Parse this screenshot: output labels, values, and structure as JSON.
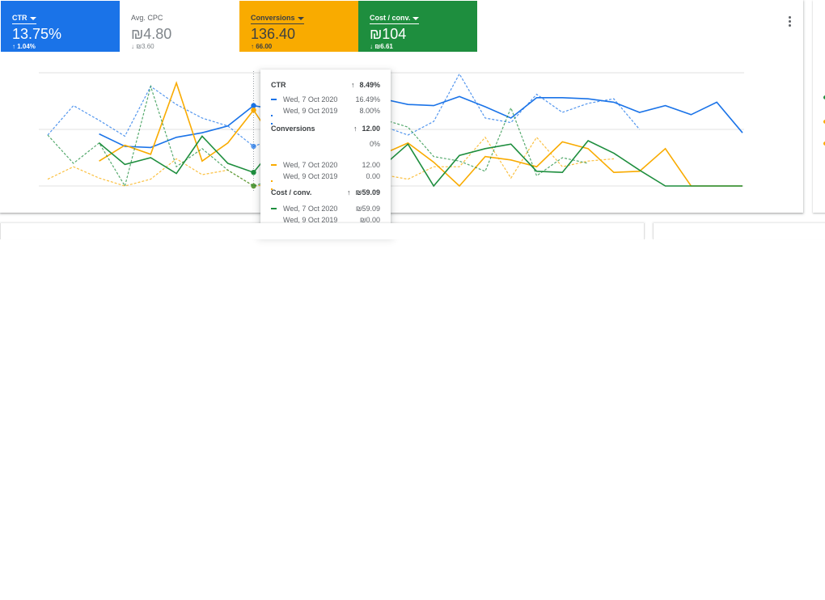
{
  "tiles": [
    {
      "name": "CTR",
      "value": "13.75%",
      "change_arrow": "↑",
      "change": "1.04%",
      "color": "#1a73e8",
      "selected": true
    },
    {
      "name": "Avg. CPC",
      "value": "₪4.80",
      "change_arrow": "↓",
      "change": "₪3.60",
      "color": "#ffffff",
      "selected": false
    },
    {
      "name": "Conversions",
      "value": "136.40",
      "change_arrow": "↑",
      "change": "66.00",
      "color": "#f9ab00",
      "selected": true
    },
    {
      "name": "Cost / conv.",
      "value": "₪104",
      "change_arrow": "↓",
      "change": "₪6.61",
      "color": "#1e8e3e",
      "selected": true
    }
  ],
  "tooltip": {
    "sections": [
      {
        "metric": "CTR",
        "arrow": "↑",
        "delta": "8.49%",
        "color": "#1a73e8",
        "rows": [
          {
            "date": "Wed, 7 Oct 2020",
            "value": "16.49%"
          },
          {
            "date": "Wed, 9 Oct 2019",
            "value": "8.00%"
          }
        ]
      },
      {
        "metric": "Conversions",
        "arrow": "↑",
        "delta": "12.00",
        "extra": "0%",
        "color": "#f9ab00",
        "rows": [
          {
            "date": "Wed, 7 Oct 2020",
            "value": "12.00"
          },
          {
            "date": "Wed, 9 Oct 2019",
            "value": "0.00"
          }
        ]
      },
      {
        "metric": "Cost / conv.",
        "arrow": "↑",
        "delta": "₪59.09",
        "color": "#1e8e3e",
        "rows": [
          {
            "date": "Wed, 7 Oct 2020",
            "value": "₪59.09"
          },
          {
            "date": "Wed, 9 Oct 2019",
            "value": "₪0.00"
          }
        ]
      }
    ]
  },
  "chart_data": {
    "type": "line",
    "grid": true,
    "legend": "none",
    "x": [
      0,
      1,
      2,
      3,
      4,
      5,
      6,
      7,
      8,
      9,
      10,
      11,
      12,
      13,
      14,
      15,
      16,
      17,
      18,
      19,
      20,
      21,
      22,
      23,
      24,
      25,
      26,
      27
    ],
    "highlight_index": 8,
    "series": [
      {
        "metric": "CTR",
        "period": "current",
        "color": "#1a73e8",
        "style": "solid",
        "values": [
          null,
          null,
          0.46,
          0.35,
          0.34,
          0.43,
          0.47,
          0.53,
          0.71,
          0.67,
          0.66,
          0.68,
          0.7,
          0.77,
          0.72,
          0.71,
          0.79,
          0.7,
          0.6,
          0.78,
          0.78,
          0.77,
          0.74,
          0.65,
          0.71,
          0.63,
          0.74,
          0.47
        ]
      },
      {
        "metric": "CTR",
        "period": "previous",
        "color": "#1a73e8",
        "style": "dashed",
        "values": [
          0.45,
          0.71,
          0.58,
          0.44,
          0.88,
          0.72,
          0.6,
          0.53,
          0.35,
          0.43,
          0.59,
          0.36,
          0.34,
          0.53,
          0.45,
          0.57,
          0.99,
          0.6,
          0.56,
          0.81,
          0.65,
          0.73,
          0.77,
          0.5,
          null,
          null,
          null,
          null
        ]
      },
      {
        "metric": "Conversions",
        "period": "current",
        "color": "#f9ab00",
        "style": "solid",
        "values": [
          null,
          null,
          0.22,
          0.36,
          0.28,
          0.91,
          0.22,
          0.38,
          0.67,
          0.33,
          0.45,
          0.62,
          0.25,
          0.28,
          0.38,
          0.21,
          0.0,
          0.26,
          0.23,
          0.17,
          0.39,
          0.33,
          0.12,
          0.13,
          0.33,
          0.0,
          0.0,
          0.0
        ]
      },
      {
        "metric": "Conversions",
        "period": "previous",
        "color": "#f9ab00",
        "style": "dashed",
        "values": [
          0.06,
          0.17,
          0.07,
          0.0,
          0.06,
          0.24,
          0.1,
          0.14,
          0.0,
          0.02,
          0.24,
          0.18,
          0.13,
          0.1,
          0.06,
          0.17,
          0.17,
          0.43,
          0.07,
          0.43,
          0.17,
          0.22,
          0.24,
          null,
          null,
          null,
          null,
          null
        ]
      },
      {
        "metric": "Cost / conv.",
        "period": "current",
        "color": "#1e8e3e",
        "style": "solid",
        "values": [
          null,
          null,
          0.38,
          0.19,
          0.25,
          0.11,
          0.44,
          0.2,
          0.12,
          0.4,
          0.21,
          0.3,
          0.27,
          0.17,
          0.37,
          0.0,
          0.27,
          0.33,
          0.37,
          0.13,
          0.12,
          0.4,
          0.29,
          0.14,
          0.0,
          0.0,
          0.0,
          0.0
        ]
      },
      {
        "metric": "Cost / conv.",
        "period": "previous",
        "color": "#1e8e3e",
        "style": "dashed",
        "values": [
          0.45,
          0.2,
          0.38,
          0.0,
          0.88,
          0.17,
          0.33,
          0.14,
          0.0,
          0.07,
          0.26,
          0.29,
          0.29,
          0.59,
          0.52,
          0.26,
          0.22,
          0.13,
          0.69,
          0.09,
          0.25,
          0.2,
          null,
          null,
          null,
          null,
          null,
          null
        ]
      }
    ]
  },
  "right_card_dots": [
    "#1e8e3e",
    "#f9ab00",
    "#f9ab00"
  ]
}
